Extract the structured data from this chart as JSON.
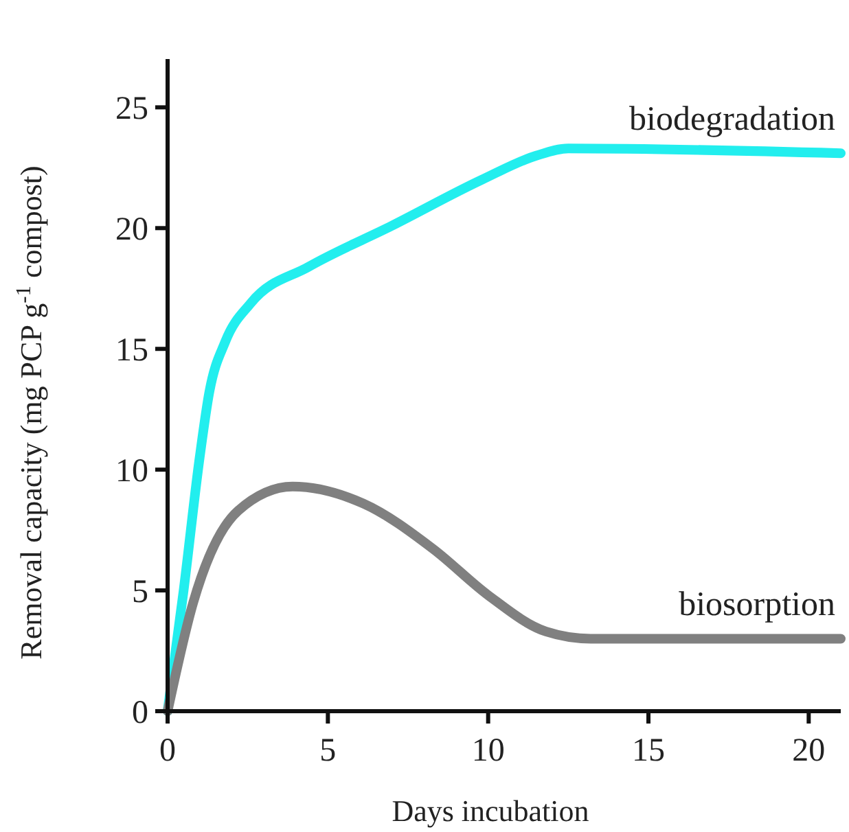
{
  "chart_data": {
    "type": "line",
    "xlabel": "Days incubation",
    "ylabel": "Removal capacity (mg PCP g$^{-1}$ compost)",
    "xlim": [
      0,
      21
    ],
    "ylim": [
      0,
      27
    ],
    "xticks": [
      0,
      5,
      10,
      15,
      20
    ],
    "yticks": [
      0,
      5,
      10,
      15,
      20,
      25
    ],
    "grid": false,
    "marker": "none",
    "line_style": "solid",
    "series": [
      {
        "name": "biodegradation",
        "color": "#22eeee",
        "x": [
          0,
          0.5,
          1,
          1.3,
          1.8,
          2.6,
          4.4,
          7,
          9.8,
          11.5,
          12.5,
          21
        ],
        "values": [
          0,
          5,
          10.5,
          13.2,
          15.3,
          16.9,
          18.4,
          20.1,
          22,
          23,
          23.3,
          23.1
        ]
      },
      {
        "name": "biosorption",
        "color": "#808080",
        "x": [
          0,
          0.8,
          2.2,
          3.9,
          6.1,
          8.3,
          10,
          11.8,
          13.2,
          21
        ],
        "values": [
          0,
          4.5,
          8.3,
          9.3,
          8.6,
          6.7,
          4.8,
          3.3,
          3,
          3
        ]
      }
    ]
  }
}
